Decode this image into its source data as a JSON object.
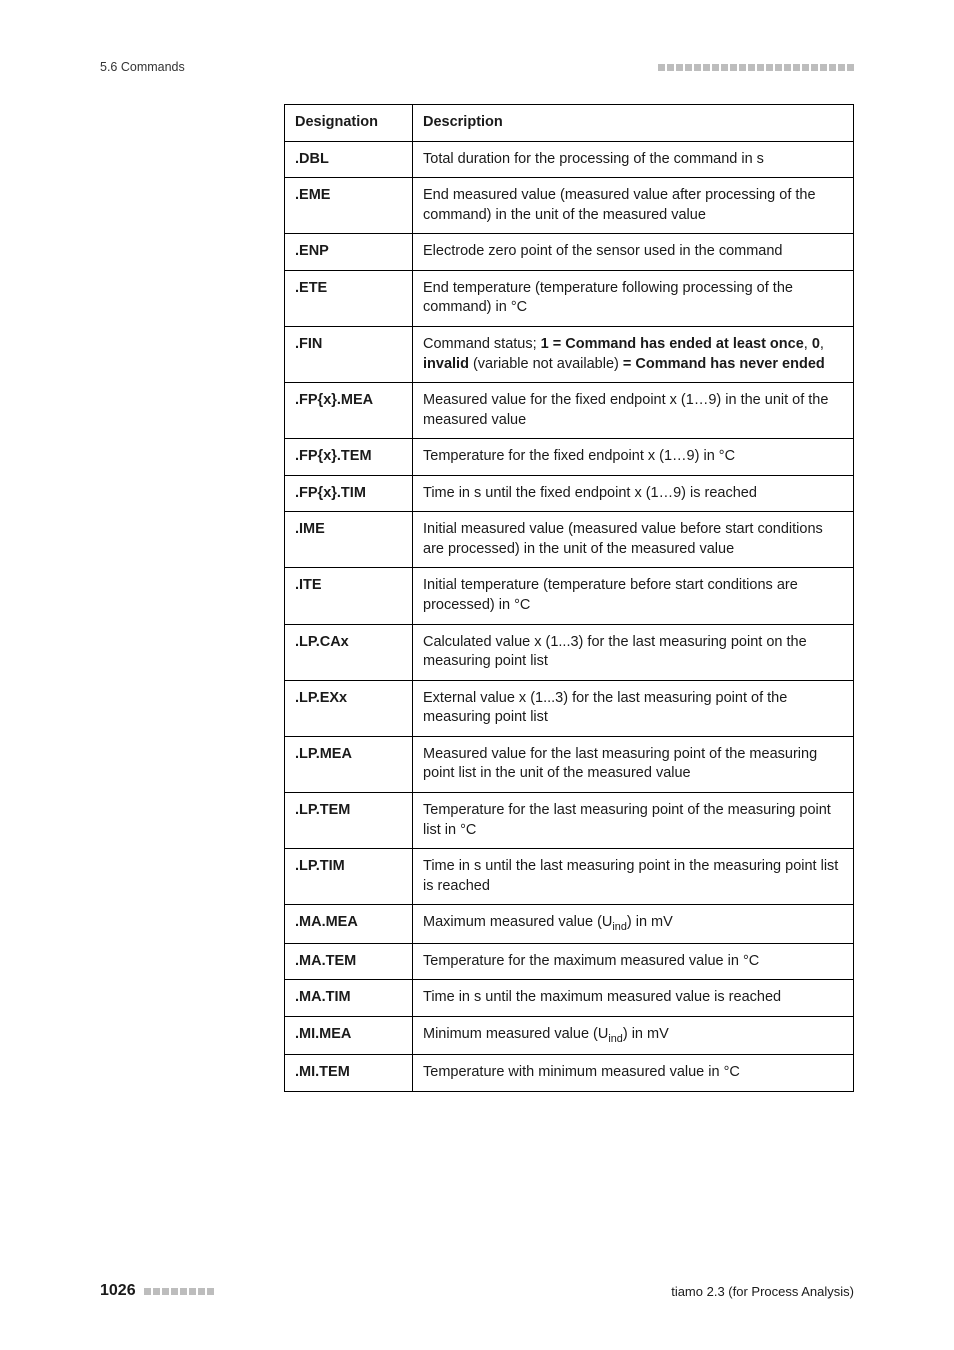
{
  "header": {
    "section": "5.6 Commands"
  },
  "table": {
    "col_designation": "Designation",
    "col_description": "Description",
    "rows": [
      {
        "d": ".DBL",
        "desc_plain": "Total duration for the processing of the command in s"
      },
      {
        "d": ".EME",
        "desc_plain": "End measured value (measured value after processing of the command) in the unit of the measured value"
      },
      {
        "d": ".ENP",
        "desc_plain": "Electrode zero point of the sensor used in the command"
      },
      {
        "d": ".ETE",
        "desc_plain": "End temperature (temperature following processing of the command) in °C"
      },
      {
        "d": ".FIN",
        "desc_parts": {
          "p0": "Command status; ",
          "b1": "1 = Command has ended at least once",
          "p1": ", ",
          "b2": "0",
          "p2": ", ",
          "b3": "invalid",
          "p3": " (variable not available) ",
          "b4": "= Command has never ended"
        }
      },
      {
        "d": ".FP{x}.MEA",
        "desc_plain": "Measured value for the fixed endpoint x (1…9) in the unit of the measured value"
      },
      {
        "d": ".FP{x}.TEM",
        "desc_plain": "Temperature for the fixed endpoint x (1…9) in °C"
      },
      {
        "d": ".FP{x}.TIM",
        "desc_plain": "Time in s until the fixed endpoint x (1…9) is reached"
      },
      {
        "d": ".IME",
        "desc_plain": "Initial measured value (measured value before start conditions are processed) in the unit of the measured value"
      },
      {
        "d": ".ITE",
        "desc_plain": "Initial temperature (temperature before start conditions are processed) in °C"
      },
      {
        "d": ".LP.CAx",
        "desc_plain": "Calculated value x (1...3) for the last measuring point on the measuring point list"
      },
      {
        "d": ".LP.EXx",
        "desc_plain": "External value x (1...3) for the last measuring point of the measuring point list"
      },
      {
        "d": ".LP.MEA",
        "desc_plain": "Measured value for the last measuring point of the measuring point list in the unit of the measured value"
      },
      {
        "d": ".LP.TEM",
        "desc_plain": "Temperature for the last measuring point of the measuring point list in °C"
      },
      {
        "d": ".LP.TIM",
        "desc_plain": "Time in s until the last measuring point in the measuring point list is reached"
      },
      {
        "d": ".MA.MEA",
        "desc_sub": {
          "pre": "Maximum measured value (U",
          "sub": "ind",
          "post": ") in mV"
        }
      },
      {
        "d": ".MA.TEM",
        "desc_plain": "Temperature for the maximum measured value in °C"
      },
      {
        "d": ".MA.TIM",
        "desc_plain": "Time in s until the maximum measured value is reached"
      },
      {
        "d": ".MI.MEA",
        "desc_sub": {
          "pre": "Minimum measured value (U",
          "sub": "ind",
          "post": ") in mV"
        }
      },
      {
        "d": ".MI.TEM",
        "desc_plain": "Temperature with minimum measured value in °C"
      }
    ]
  },
  "footer": {
    "page_number": "1026",
    "doc_title": "tiamo 2.3 (for Process Analysis)"
  },
  "style": {
    "dot_count_header": 22,
    "dot_count_footer": 8,
    "dot_color": "#bdbdbd"
  }
}
